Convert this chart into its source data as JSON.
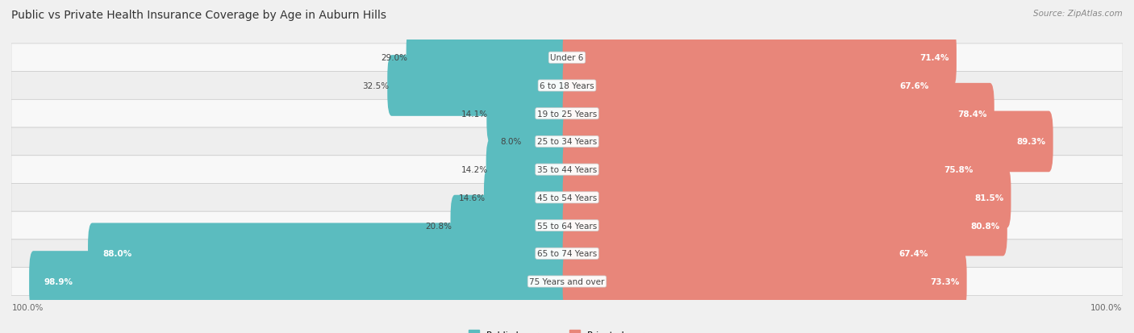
{
  "title": "Public vs Private Health Insurance Coverage by Age in Auburn Hills",
  "source": "Source: ZipAtlas.com",
  "categories": [
    "Under 6",
    "6 to 18 Years",
    "19 to 25 Years",
    "25 to 34 Years",
    "35 to 44 Years",
    "45 to 54 Years",
    "55 to 64 Years",
    "65 to 74 Years",
    "75 Years and over"
  ],
  "public_values": [
    29.0,
    32.5,
    14.1,
    8.0,
    14.2,
    14.6,
    20.8,
    88.0,
    98.9
  ],
  "private_values": [
    71.4,
    67.6,
    78.4,
    89.3,
    75.8,
    81.5,
    80.8,
    67.4,
    73.3
  ],
  "public_color": "#5bbcbf",
  "private_color": "#e8867a",
  "bg_color": "#f0f0f0",
  "row_bg_light": "#f8f8f8",
  "row_bg_dark": "#eeeeee",
  "title_fontsize": 10,
  "source_fontsize": 7.5,
  "label_fontsize": 7.5,
  "bar_label_fontsize": 7.5,
  "legend_fontsize": 8,
  "bar_height": 0.58,
  "max_val": 100.0
}
